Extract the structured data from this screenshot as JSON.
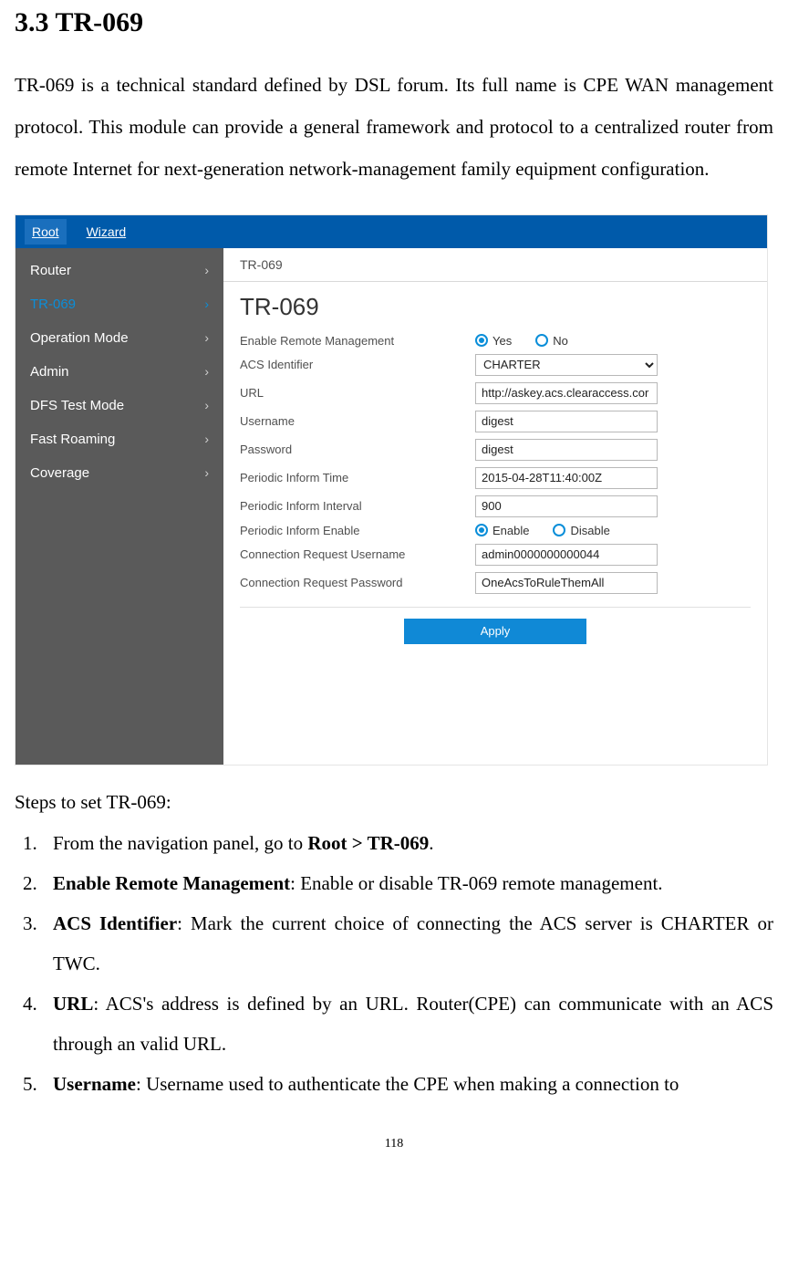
{
  "doc": {
    "section_title": "3.3 TR-069",
    "intro": "TR-069 is a technical standard defined by DSL forum. Its full name is CPE WAN management protocol. This module can provide a general framework and protocol to a centralized router from remote Internet for next-generation network-management family equipment configuration.",
    "steps_title": "Steps to set TR-069:",
    "steps": [
      {
        "pre": "From the navigation panel, go to ",
        "bold": "Root > TR-069",
        "post": "."
      },
      {
        "bold": "Enable Remote Management",
        "post": ": Enable or disable TR-069 remote management."
      },
      {
        "bold": "ACS Identifier",
        "post": ": Mark the current choice of connecting the ACS server is CHARTER or TWC."
      },
      {
        "bold": "URL",
        "post": ": ACS's address is defined by an URL. Router(CPE) can communicate with an ACS through an valid URL."
      },
      {
        "bold": "Username",
        "post": ": Username used to authenticate the CPE when making a connection to"
      }
    ],
    "page_number": "118"
  },
  "ui": {
    "tabs": [
      {
        "label": "Root",
        "active": true
      },
      {
        "label": "Wizard",
        "active": false
      }
    ],
    "sidebar": [
      {
        "label": "Router",
        "active": false
      },
      {
        "label": "TR-069",
        "active": true
      },
      {
        "label": "Operation Mode",
        "active": false
      },
      {
        "label": "Admin",
        "active": false
      },
      {
        "label": "DFS Test Mode",
        "active": false
      },
      {
        "label": "Fast Roaming",
        "active": false
      },
      {
        "label": "Coverage",
        "active": false
      }
    ],
    "subhead": "TR-069",
    "panel_heading": "TR-069",
    "form": {
      "enable_remote_label": "Enable Remote Management",
      "enable_remote_opts": {
        "yes": "Yes",
        "no": "No",
        "selected": "yes"
      },
      "acs_identifier_label": "ACS Identifier",
      "acs_identifier_value": "CHARTER",
      "url_label": "URL",
      "url_value": "http://askey.acs.clearaccess.cor",
      "username_label": "Username",
      "username_value": "digest",
      "password_label": "Password",
      "password_value": "digest",
      "inform_time_label": "Periodic Inform Time",
      "inform_time_value": "2015-04-28T11:40:00Z",
      "inform_interval_label": "Periodic Inform Interval",
      "inform_interval_value": "900",
      "inform_enable_label": "Periodic Inform Enable",
      "inform_enable_opts": {
        "enable": "Enable",
        "disable": "Disable",
        "selected": "enable"
      },
      "conn_user_label": "Connection Request Username",
      "conn_user_value": "admin0000000000044",
      "conn_pass_label": "Connection Request Password",
      "conn_pass_value": "OneAcsToRuleThemAll",
      "apply_label": "Apply"
    }
  }
}
